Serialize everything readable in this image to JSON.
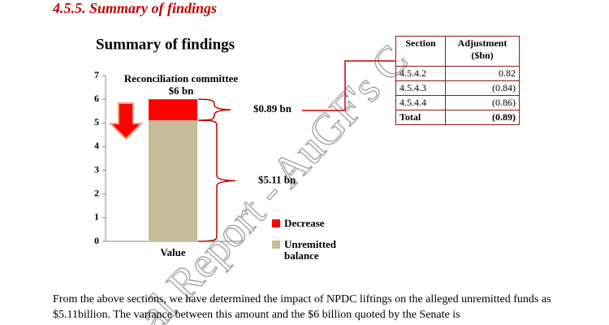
{
  "heading": "4.5.5. Summary of findings",
  "watermark": "al Report - AuGF's C",
  "chart_data": {
    "type": "stacked-bar",
    "title": "Summary of findings",
    "categories": [
      "Value"
    ],
    "series": [
      {
        "name": "Unremitted balance",
        "color": "#c4bd97",
        "values": [
          5.11
        ]
      },
      {
        "name": "Decrease",
        "color": "#ff0000",
        "values": [
          0.89
        ]
      }
    ],
    "ylim": [
      0,
      7
    ],
    "yticks": [
      0,
      1,
      2,
      3,
      4,
      5,
      6,
      7
    ],
    "annotations": {
      "committee": "Reconciliation committee",
      "total": "$6 bn",
      "decrease": "$0.89 bn",
      "balance": "$5.11 bn"
    },
    "legend": "right"
  },
  "table": {
    "header": [
      "Section",
      "Adjustment ($bn)"
    ],
    "rows": [
      [
        "4.5.4.2",
        "0.82"
      ],
      [
        "4.5.4.3",
        "(0.84)"
      ],
      [
        "4.5.4.4",
        "(0.86)"
      ],
      [
        "Total",
        "(0.89)"
      ]
    ]
  },
  "body": "From the above sections, we have determined the impact of NPDC liftings on the alleged unremitted funds as $5.11billion. The variance between this amount and the $6 billion quoted by the Senate is"
}
